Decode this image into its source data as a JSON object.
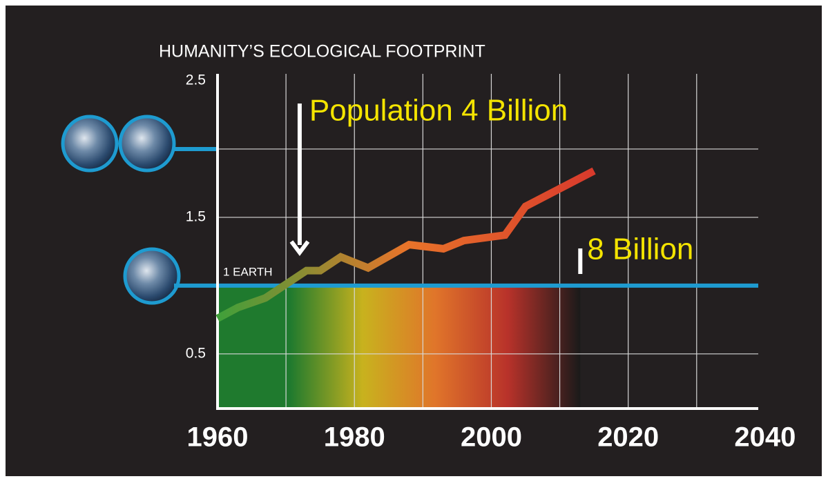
{
  "chart_data": {
    "type": "line",
    "title": "HUMANITY’S ECOLOGICAL FOOTPRINT",
    "x": [
      1960,
      1963,
      1967,
      1973,
      1975,
      1978,
      1982,
      1988,
      1993,
      1996,
      2002,
      2005,
      2015
    ],
    "values": [
      0.76,
      0.84,
      0.91,
      1.11,
      1.11,
      1.21,
      1.13,
      1.3,
      1.27,
      1.33,
      1.37,
      1.58,
      1.84
    ],
    "line_colors": [
      "#3fa03a",
      "#e8742a",
      "#d83a2c"
    ],
    "xlim": [
      1960,
      2039
    ],
    "ylim": [
      0.1,
      2.5
    ],
    "xticks": [
      1960,
      1980,
      2000,
      2020,
      2040
    ],
    "yticks": [
      0.5,
      1.5,
      2.5
    ],
    "xgrid": [
      1970,
      1980,
      1990,
      2000,
      2010,
      2020,
      2030
    ],
    "ygrid": [
      0.5,
      1.5,
      2
    ],
    "reference_lines": [
      {
        "value": 1,
        "label": "1 EARTH",
        "color": "#1e9bd0"
      },
      {
        "value": 2,
        "color": "#1e9bd0"
      }
    ],
    "band": {
      "x": [
        1960,
        2013
      ],
      "y": 1,
      "colors": [
        "#1f7a2e",
        "#1f7a2e",
        "#c8b21e",
        "#e0752a",
        "#b8322a",
        "#1a1a1a"
      ]
    },
    "annotations": [
      {
        "text": "Population 4 Billion",
        "x": 1972
      },
      {
        "text": "8 Billion",
        "x": 2013
      }
    ]
  }
}
